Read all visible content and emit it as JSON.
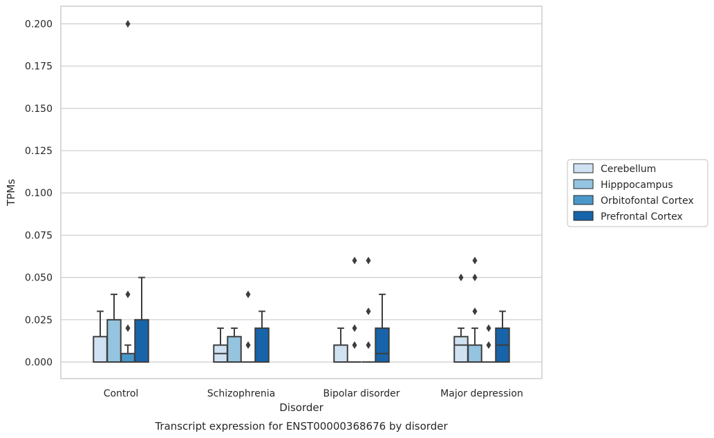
{
  "chart_data": {
    "type": "box",
    "title": "Transcript expression for ENST00000368676 by disorder",
    "xlabel": "Disorder",
    "ylabel": "TPMs",
    "ylim": [
      -0.01,
      0.21
    ],
    "yticks": [
      "0.000",
      "0.025",
      "0.050",
      "0.075",
      "0.100",
      "0.125",
      "0.150",
      "0.175",
      "0.200"
    ],
    "grid": "horizontal",
    "legend_position": "right",
    "categories": [
      "Control",
      "Schizophrenia",
      "Bipolar disorder",
      "Major depression"
    ],
    "series": [
      {
        "name": "Cerebellum",
        "color": "#d0e1f2",
        "boxes": [
          {
            "q1": 0,
            "median": 0,
            "q3": 0.015,
            "whislo": 0,
            "whishi": 0.03,
            "fliers": []
          },
          {
            "q1": 0,
            "median": 0.005,
            "q3": 0.01,
            "whislo": 0,
            "whishi": 0.02,
            "fliers": []
          },
          {
            "q1": 0,
            "median": 0,
            "q3": 0.01,
            "whislo": 0,
            "whishi": 0.02,
            "fliers": []
          },
          {
            "q1": 0,
            "median": 0.01,
            "q3": 0.015,
            "whislo": 0,
            "whishi": 0.02,
            "fliers": [
              0.05
            ]
          }
        ]
      },
      {
        "name": "Hipppocampus",
        "color": "#94c4df",
        "boxes": [
          {
            "q1": 0,
            "median": 0,
            "q3": 0.025,
            "whislo": 0,
            "whishi": 0.04,
            "fliers": []
          },
          {
            "q1": 0,
            "median": 0,
            "q3": 0.015,
            "whislo": 0,
            "whishi": 0.02,
            "fliers": []
          },
          {
            "q1": 0,
            "median": 0,
            "q3": 0,
            "whislo": 0,
            "whishi": 0,
            "fliers": [
              0.01,
              0.02,
              0.06
            ]
          },
          {
            "q1": 0,
            "median": 0,
            "q3": 0.01,
            "whislo": 0,
            "whishi": 0.02,
            "fliers": [
              0.03,
              0.05,
              0.06
            ]
          }
        ]
      },
      {
        "name": "Orbitofontal Cortex",
        "color": "#4a98c9",
        "boxes": [
          {
            "q1": 0,
            "median": 0,
            "q3": 0.005,
            "whislo": 0,
            "whishi": 0.01,
            "fliers": [
              0.02,
              0.04,
              0.2
            ]
          },
          {
            "q1": 0,
            "median": 0,
            "q3": 0,
            "whislo": 0,
            "whishi": 0,
            "fliers": [
              0.01,
              0.04
            ]
          },
          {
            "q1": 0,
            "median": 0,
            "q3": 0,
            "whislo": 0,
            "whishi": 0,
            "fliers": [
              0.01,
              0.03,
              0.06
            ]
          },
          {
            "q1": 0,
            "median": 0,
            "q3": 0,
            "whislo": 0,
            "whishi": 0,
            "fliers": [
              0.01,
              0.02
            ]
          }
        ]
      },
      {
        "name": "Prefrontal Cortex",
        "color": "#1764ab",
        "boxes": [
          {
            "q1": 0,
            "median": 0,
            "q3": 0.025,
            "whislo": 0,
            "whishi": 0.05,
            "fliers": []
          },
          {
            "q1": 0,
            "median": 0,
            "q3": 0.02,
            "whislo": 0,
            "whishi": 0.03,
            "fliers": []
          },
          {
            "q1": 0,
            "median": 0.005,
            "q3": 0.02,
            "whislo": 0,
            "whishi": 0.04,
            "fliers": []
          },
          {
            "q1": 0,
            "median": 0.01,
            "q3": 0.02,
            "whislo": 0,
            "whishi": 0.03,
            "fliers": []
          }
        ]
      }
    ]
  }
}
